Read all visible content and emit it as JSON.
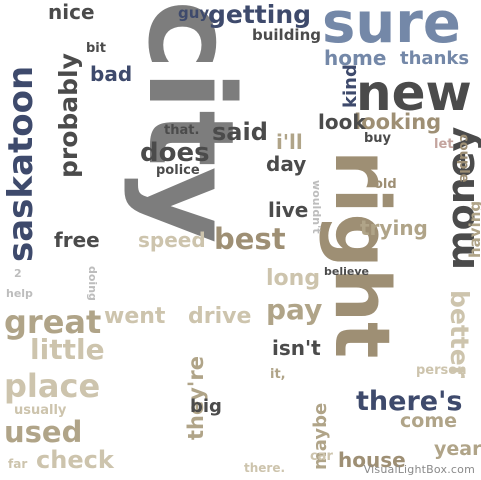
{
  "colors": {
    "gray": "#7d7d7d",
    "navy": "#3e4a6c",
    "blue": "#7488a8",
    "dark": "#4b4b4b",
    "tan": "#b0a488",
    "beige": "#cdc4ad",
    "brown": "#9e8f74",
    "rose": "#c4a49e",
    "light": "#bdbdbd"
  },
  "words": [
    {
      "text": "city",
      "color": "gray"
    },
    {
      "text": "right",
      "color": "brown"
    },
    {
      "text": "sure",
      "color": "blue"
    },
    {
      "text": "saskatoon",
      "color": "navy"
    },
    {
      "text": "new",
      "color": "dark"
    },
    {
      "text": "money",
      "color": "dark"
    },
    {
      "text": "great",
      "color": "tan"
    },
    {
      "text": "place",
      "color": "beige"
    },
    {
      "text": "probably",
      "color": "dark"
    },
    {
      "text": "getting",
      "color": "navy"
    },
    {
      "text": "best",
      "color": "brown"
    },
    {
      "text": "there's",
      "color": "navy"
    },
    {
      "text": "used",
      "color": "tan"
    },
    {
      "text": "little",
      "color": "beige"
    },
    {
      "text": "said",
      "color": "dark"
    },
    {
      "text": "does",
      "color": "dark"
    },
    {
      "text": "looking",
      "color": "brown"
    },
    {
      "text": "home",
      "color": "blue"
    },
    {
      "text": "thanks",
      "color": "blue"
    },
    {
      "text": "better",
      "color": "beige"
    },
    {
      "text": "pay",
      "color": "tan"
    },
    {
      "text": "check",
      "color": "beige"
    },
    {
      "text": "drive",
      "color": "beige"
    },
    {
      "text": "went",
      "color": "beige"
    },
    {
      "text": "speed",
      "color": "beige"
    },
    {
      "text": "trying",
      "color": "tan"
    },
    {
      "text": "look",
      "color": "dark"
    },
    {
      "text": "nice",
      "color": "dark"
    },
    {
      "text": "bad",
      "color": "navy"
    },
    {
      "text": "free",
      "color": "dark"
    },
    {
      "text": "live",
      "color": "dark"
    },
    {
      "text": "long",
      "color": "beige"
    },
    {
      "text": "house",
      "color": "brown"
    },
    {
      "text": "year",
      "color": "tan"
    },
    {
      "text": "come",
      "color": "tan"
    },
    {
      "text": "they're",
      "color": "tan"
    },
    {
      "text": "isn't",
      "color": "dark"
    },
    {
      "text": "kind",
      "color": "navy"
    },
    {
      "text": "i'll",
      "color": "tan"
    },
    {
      "text": "day",
      "color": "dark"
    },
    {
      "text": "maybe",
      "color": "tan"
    },
    {
      "text": "having",
      "color": "tan"
    },
    {
      "text": "big",
      "color": "dark"
    },
    {
      "text": "building",
      "color": "dark"
    },
    {
      "text": "guy",
      "color": "navy"
    },
    {
      "text": "bit",
      "color": "dark"
    },
    {
      "text": "that.",
      "color": "dark"
    },
    {
      "text": "police",
      "color": "dark"
    },
    {
      "text": "buy",
      "color": "dark"
    },
    {
      "text": "let",
      "color": "rose"
    },
    {
      "text": "couple",
      "color": "brown"
    },
    {
      "text": "old",
      "color": "brown"
    },
    {
      "text": "wouldn't",
      "color": "light"
    },
    {
      "text": "believe",
      "color": "dark"
    },
    {
      "text": "doing",
      "color": "light"
    },
    {
      "text": "help",
      "color": "light"
    },
    {
      "text": "2",
      "color": "light"
    },
    {
      "text": "it,",
      "color": "tan"
    },
    {
      "text": "person",
      "color": "beige"
    },
    {
      "text": "usually",
      "color": "beige"
    },
    {
      "text": "far",
      "color": "beige"
    },
    {
      "text": "there.",
      "color": "beige"
    },
    {
      "text": "car",
      "color": "beige"
    }
  ],
  "credit": "VisualLightBox.com"
}
